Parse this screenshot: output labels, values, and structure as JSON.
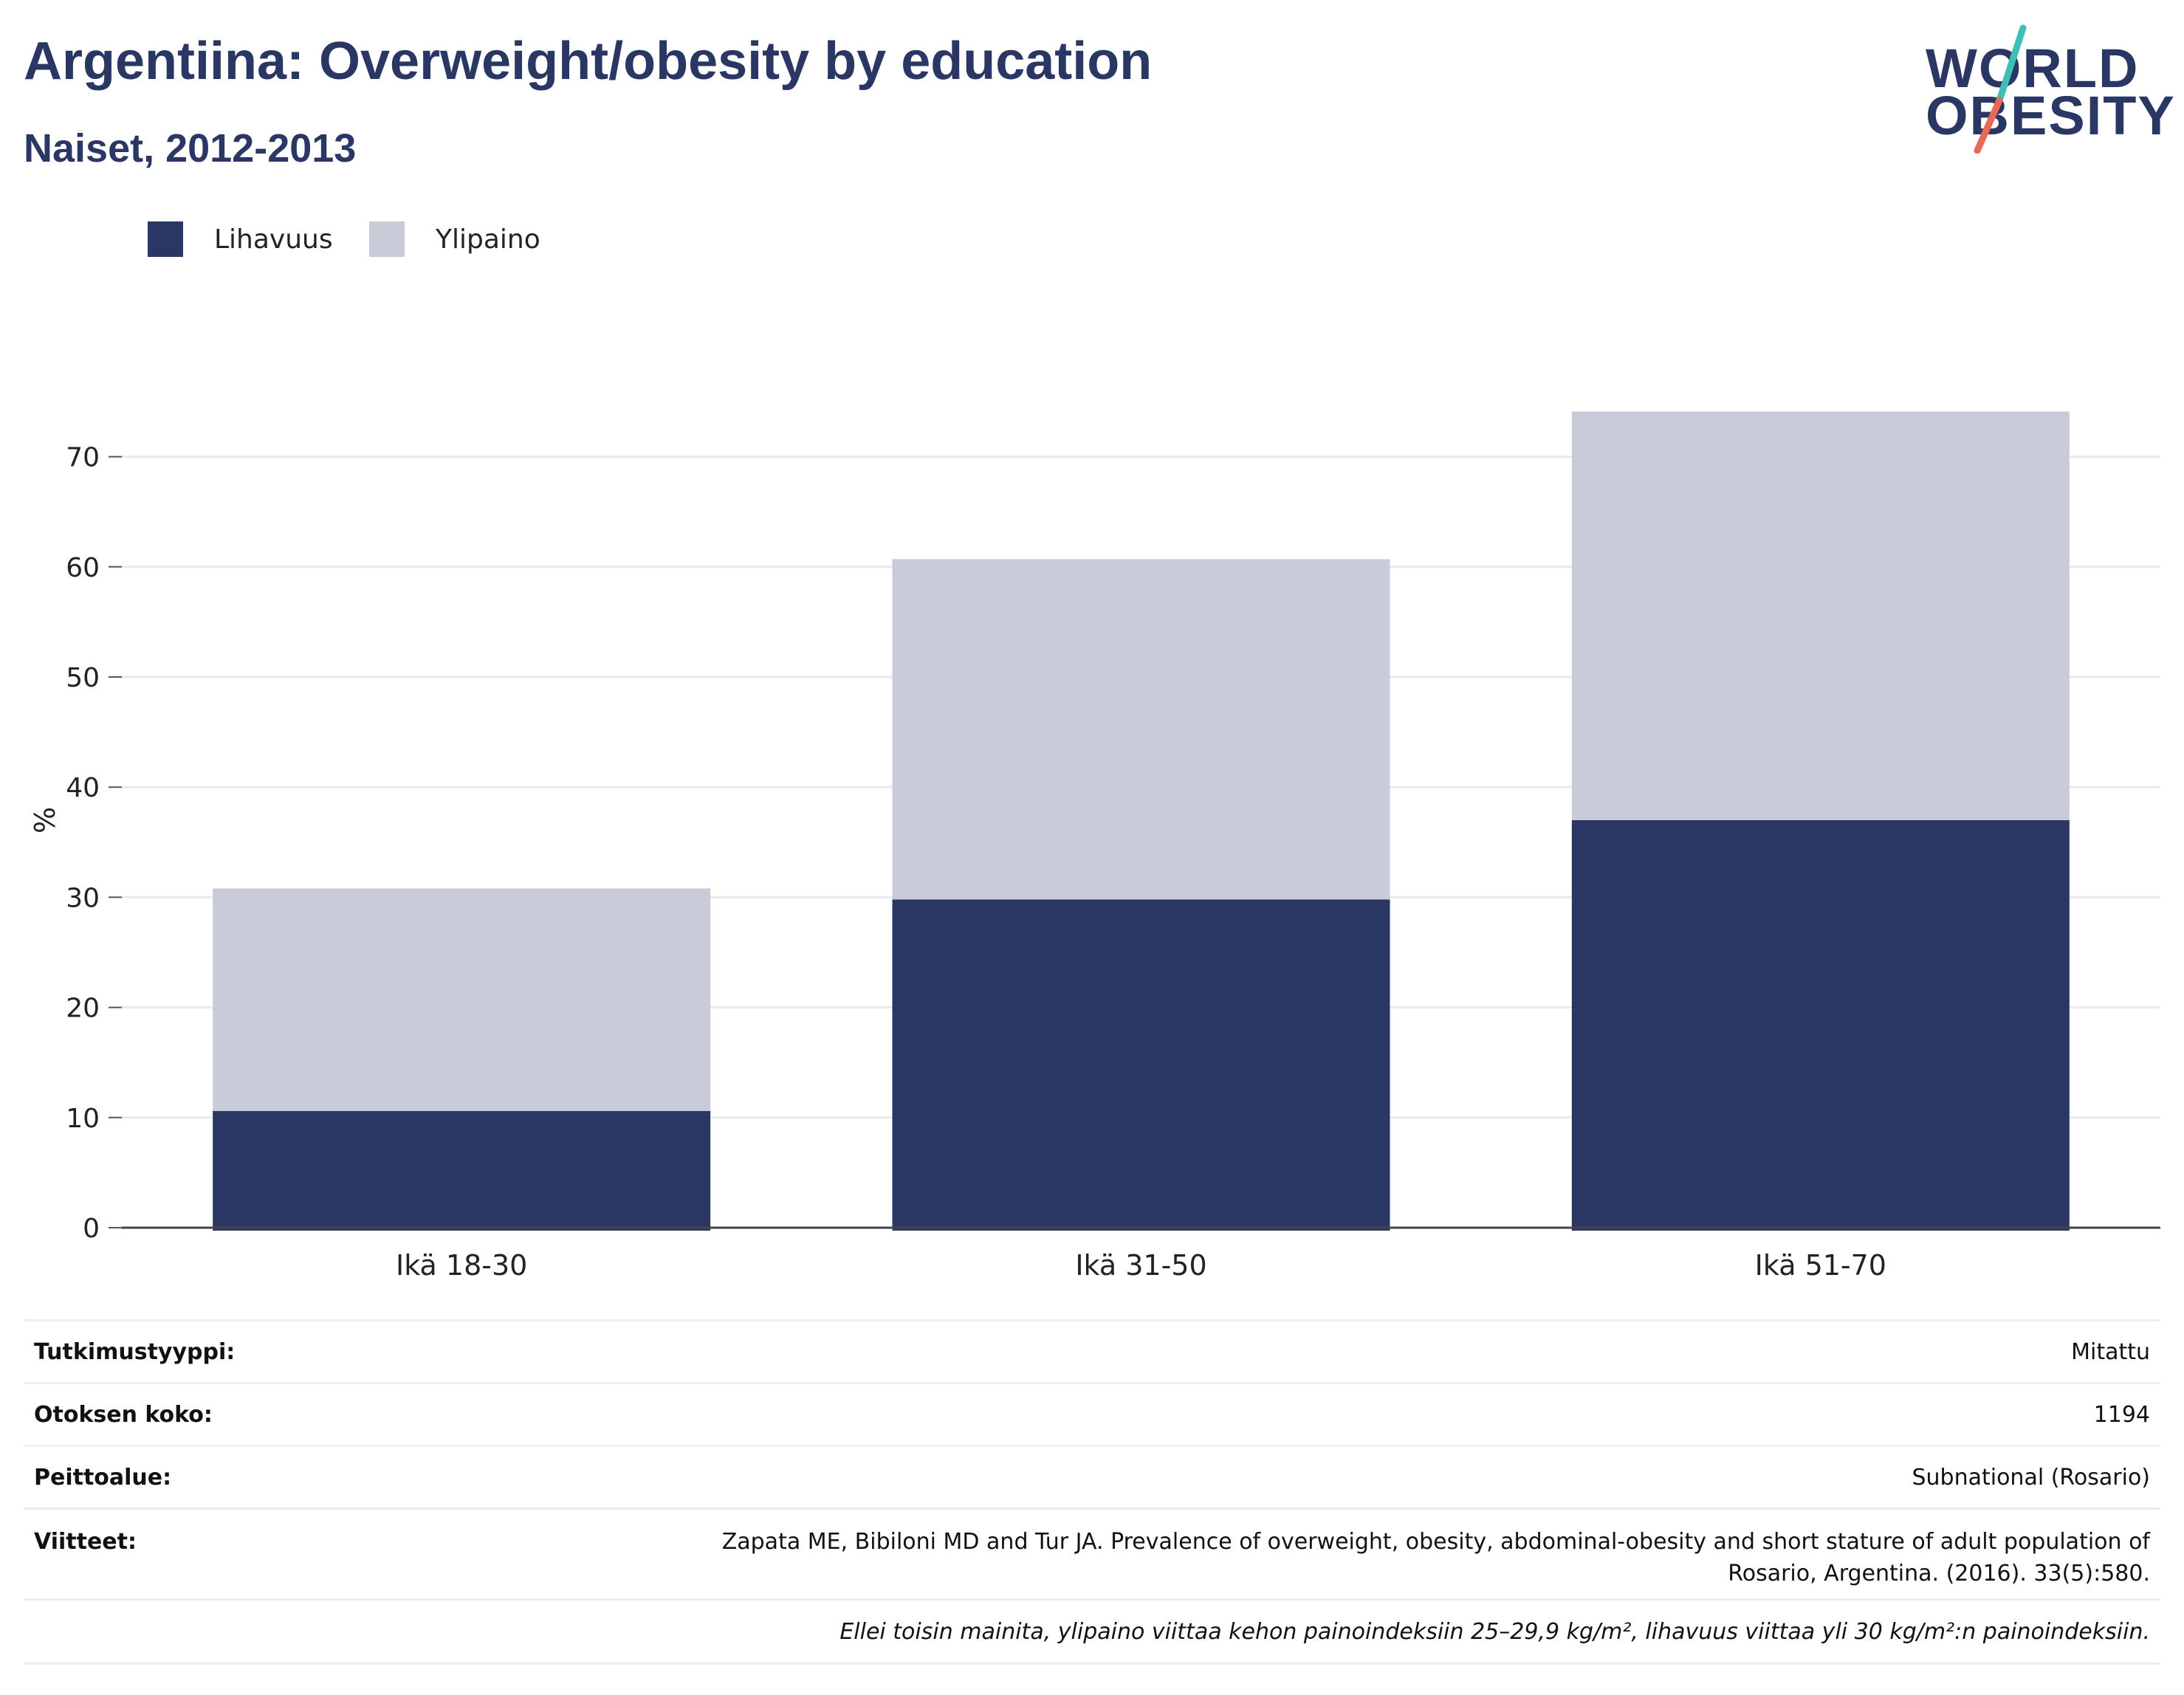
{
  "header": {
    "title": "Argentiina: Overweight/obesity by education",
    "subtitle": "Naiset, 2012-2013"
  },
  "logo": {
    "line1": "WORLD",
    "line2": "OBESITY",
    "accent_teal": "#3bbfb8",
    "accent_coral": "#e86a55"
  },
  "colors": {
    "obesity": "#2a3663",
    "overweight": "#c9ccd8",
    "title": "#2a3663"
  },
  "chart_data": {
    "type": "bar",
    "stacked": true,
    "categories": [
      "Ikä 18-30",
      "Ikä 31-50",
      "Ikä 51-70"
    ],
    "series": [
      {
        "name": "Lihavuus",
        "values": [
          10.6,
          29.8,
          37.0
        ]
      },
      {
        "name": "Ylipaino",
        "values": [
          20.2,
          30.9,
          37.1
        ]
      }
    ],
    "ylabel": "%",
    "xlabel": "",
    "ylim": [
      0,
      75
    ],
    "yticks": [
      0,
      10,
      20,
      30,
      40,
      50,
      60,
      70
    ],
    "grid": true,
    "legend_position": "top-left"
  },
  "info": {
    "rows": [
      {
        "key": "Tutkimustyyppi:",
        "value": "Mitattu"
      },
      {
        "key": "Otoksen koko:",
        "value": "1194"
      },
      {
        "key": "Peittoalue:",
        "value": "Subnational (Rosario)"
      },
      {
        "key": "Viitteet:",
        "value": "Zapata ME, Bibiloni MD and Tur JA. Prevalence of overweight, obesity, abdominal-obesity and short stature of adult population of Rosario, Argentina. (2016). 33(5):580."
      }
    ],
    "note": "Ellei toisin mainita, ylipaino viittaa kehon painoindeksiin 25–29,9 kg/m², lihavuus viittaa yli 30 kg/m²:n painoindeksiin."
  }
}
